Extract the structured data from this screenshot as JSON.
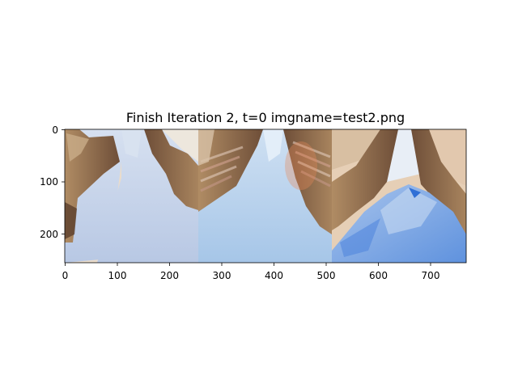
{
  "figure": {
    "title": "Finish Iteration 2, t=0 imgname=test2.png",
    "panels": [
      {
        "name": "panel-1",
        "sky": "#e8d4c0",
        "water": "#c4d2ea",
        "wall": "#8a6a4c"
      },
      {
        "name": "panel-2",
        "sky": "#a8c8e8",
        "water": "#b0cde8",
        "wall": "#7a5a44"
      },
      {
        "name": "panel-3",
        "sky": "#e2c8ac",
        "water": "#8ab2e6",
        "wall": "#7e5c46"
      }
    ],
    "x_ticks": [
      "0",
      "100",
      "200",
      "300",
      "400",
      "500",
      "600",
      "700"
    ],
    "y_ticks": [
      "0",
      "100",
      "200"
    ],
    "colors": {
      "axis": "#000000",
      "background": "#ffffff"
    }
  }
}
